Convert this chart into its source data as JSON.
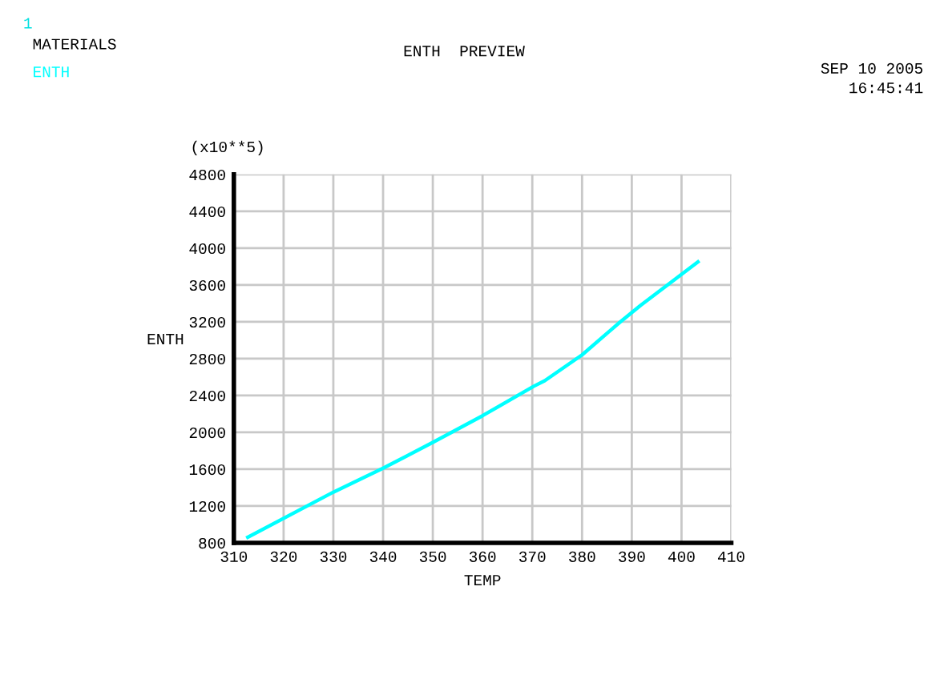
{
  "chart_data": {
    "type": "line",
    "title": "ENTH  PREVIEW",
    "xlabel": "TEMP",
    "ylabel": "ENTH",
    "annotations": [
      "1",
      "MATERIALS",
      "SEP 10 2005",
      "16:45:41",
      "(x10**5)"
    ],
    "series": [
      {
        "name": "ENTH",
        "color": "#00ffff",
        "x": [
          312.8,
          330,
          340,
          350,
          360,
          370.3,
          372.5,
          380,
          387.5,
          391.8,
          403.3
        ],
        "values": [
          860,
          1350,
          1610,
          1890,
          2180,
          2500,
          2560,
          2840,
          3190,
          3380,
          3850
        ]
      }
    ],
    "xlim": [
      310,
      410
    ],
    "xticks": [
      310,
      320,
      330,
      340,
      350,
      360,
      370,
      380,
      390,
      400,
      410
    ],
    "ylim": [
      800,
      4800
    ],
    "yticks": [
      800,
      1200,
      1600,
      2000,
      2400,
      2800,
      3200,
      3600,
      4000,
      4400,
      4800
    ],
    "grid": true,
    "legend": "top left",
    "marker": "none",
    "line_style": "solid"
  }
}
